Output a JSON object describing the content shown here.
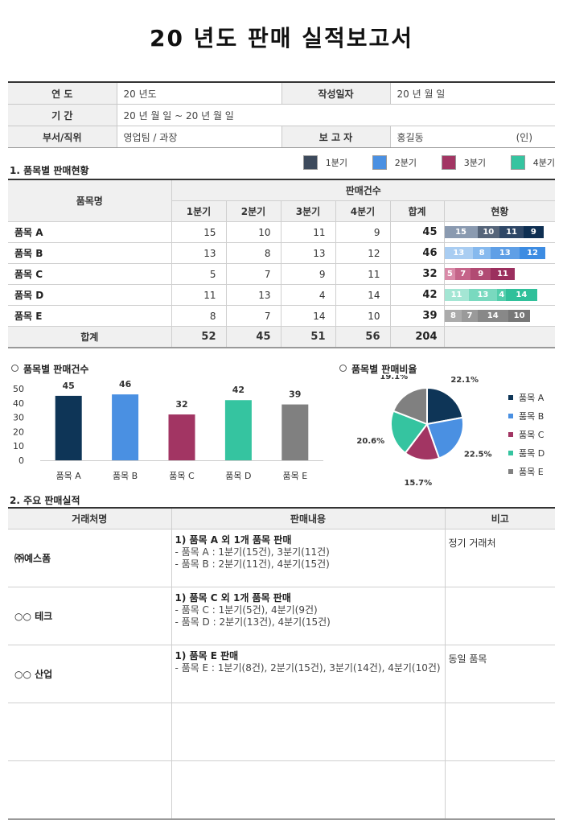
{
  "title": "20   년도  판매  실적보고서",
  "info": {
    "year_label": "연       도",
    "year_value": "20  년도",
    "date_label": "작성일자",
    "date_value": "20   년     월     일",
    "period_label": "기       간",
    "period_value": "20  년    월    일 ~ 20  년    월    일",
    "dept_label": "부서/직위",
    "dept_value": "영업팀 / 과장",
    "reporter_label": "보 고 자",
    "reporter_value": "홍길동",
    "seal": "(인)"
  },
  "section1": {
    "title": "1. 품목별 판매현황"
  },
  "legend": [
    {
      "label": "1분기",
      "color": "#3d4a5c"
    },
    {
      "label": "2분기",
      "color": "#4a90e2"
    },
    {
      "label": "3분기",
      "color": "#a23563"
    },
    {
      "label": "4분기",
      "color": "#35c4a0"
    }
  ],
  "sales": {
    "col_item": "품목명",
    "col_group": "판매건수",
    "col_q": [
      "1분기",
      "2분기",
      "3분기",
      "4분기"
    ],
    "col_sum": "합계",
    "col_status": "현황",
    "rows": [
      {
        "name": "품목 A",
        "q": [
          15,
          10,
          11,
          9
        ],
        "sum": 45
      },
      {
        "name": "품목 B",
        "q": [
          13,
          8,
          13,
          12
        ],
        "sum": 46
      },
      {
        "name": "품목 C",
        "q": [
          5,
          7,
          9,
          11
        ],
        "sum": 32
      },
      {
        "name": "품목 D",
        "q": [
          11,
          13,
          4,
          14
        ],
        "sum": 42
      },
      {
        "name": "품목 E",
        "q": [
          8,
          7,
          14,
          10
        ],
        "sum": 39
      }
    ],
    "total": {
      "label": "합계",
      "q": [
        52,
        45,
        51,
        56
      ],
      "sum": 204
    },
    "bar_colors": [
      [
        "#8a9ab0",
        "#56657a",
        "#2e4766",
        "#0e2f52"
      ],
      [
        "#a9cdf2",
        "#86b9ee",
        "#5f9fe6",
        "#3d8ce2"
      ],
      [
        "#d98aa8",
        "#c56489",
        "#b14b73",
        "#9b2f5e"
      ],
      [
        "#a4e6d4",
        "#79d9bf",
        "#52cdab",
        "#30c09a"
      ],
      [
        "#ababab",
        "#9a9a9a",
        "#888888",
        "#777777"
      ]
    ]
  },
  "bar_chart_title": "품목별 판매건수",
  "pie_chart_title": "품목별 판매비율",
  "chart_data": [
    {
      "type": "bar",
      "categories": [
        "품목 A",
        "품목 B",
        "품목 C",
        "품목 D",
        "품목 E"
      ],
      "values": [
        45,
        46,
        32,
        42,
        39
      ],
      "colors": [
        "#0e3557",
        "#4a90e2",
        "#a23563",
        "#35c4a0",
        "#808080"
      ],
      "ylim": [
        0,
        50
      ],
      "yticks": [
        0,
        10,
        20,
        30,
        40,
        50
      ],
      "title": "품목별 판매건수"
    },
    {
      "type": "pie",
      "labels": [
        "품목 A",
        "품목 B",
        "품목 C",
        "품목 D",
        "품목 E"
      ],
      "values": [
        22.1,
        22.5,
        15.7,
        20.6,
        19.1
      ],
      "value_labels": [
        "22.1%",
        "22.5%",
        "15.7%",
        "20.6%",
        "19.1%"
      ],
      "colors": [
        "#0e3557",
        "#4a90e2",
        "#a23563",
        "#35c4a0",
        "#808080"
      ],
      "legend": "right",
      "title": "품목별 판매비율"
    }
  ],
  "section2": {
    "title": "2. 주요 판매실적"
  },
  "deals": {
    "col_client": "거래처명",
    "col_content": "판매내용",
    "col_note": "비고",
    "rows": [
      {
        "client": "㈜예스폼",
        "title": "1)  품목 A 외 1개 품목 판매",
        "lines": [
          "- 품목 A : 1분기(15건), 3분기(11건)",
          "- 품목 B : 2분기(11건), 4분기(15건)"
        ],
        "note": "정기 거래처"
      },
      {
        "client": "○○ 테크",
        "title": "1)  품목 C 외 1개 품목 판매",
        "lines": [
          "- 품목 C : 1분기(5건), 4분기(9건)",
          "- 품목 D : 2분기(13건), 4분기(15건)"
        ],
        "note": ""
      },
      {
        "client": "○○ 산업",
        "title": "1)  품목 E 판매",
        "lines": [
          "- 품목 E : 1분기(8건), 2분기(15건), 3분기(14건), 4분기(10건)"
        ],
        "note": "동일 품목"
      },
      {
        "client": "",
        "title": "",
        "lines": [],
        "note": ""
      },
      {
        "client": "",
        "title": "",
        "lines": [],
        "note": ""
      }
    ]
  }
}
